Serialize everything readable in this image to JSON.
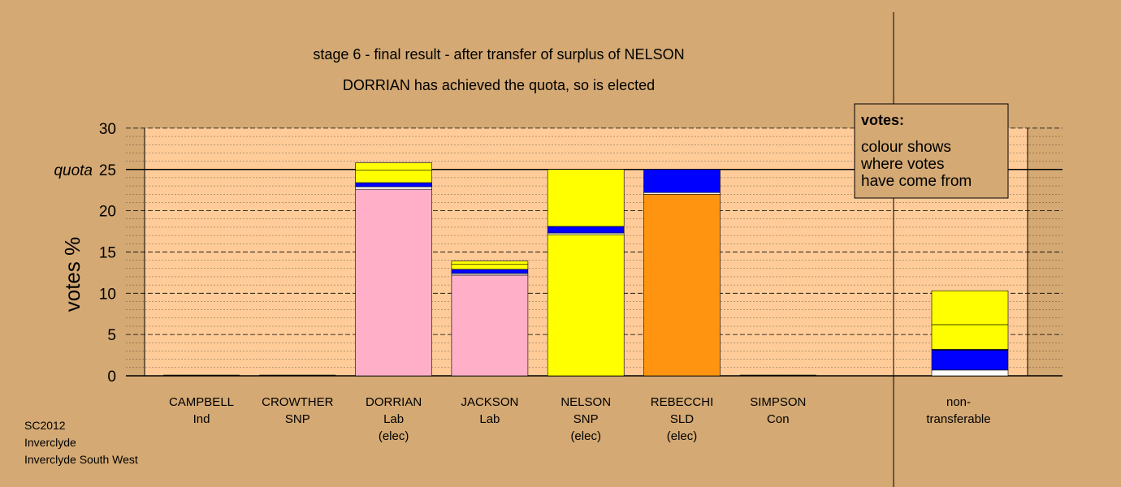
{
  "chart_data": {
    "type": "bar",
    "stacked": true,
    "title": "stage 6 - final result - after transfer of surplus of NELSON",
    "subtitle": "DORRIAN has achieved the quota, so is elected",
    "ylabel": "votes %",
    "ylim": [
      0,
      30
    ],
    "yticks": [
      0,
      5,
      10,
      15,
      20,
      25,
      30
    ],
    "quota": {
      "label": "quota",
      "value": 25
    },
    "grid": true,
    "legend": {
      "position": "top-right",
      "heading": "votes:",
      "lines": [
        "colour shows",
        "where votes",
        "have come from"
      ]
    },
    "candidates": [
      {
        "name": "CAMPBELL",
        "party": "Ind",
        "status": "",
        "segments": []
      },
      {
        "name": "CROWTHER",
        "party": "SNP",
        "status": "",
        "segments": []
      },
      {
        "name": "DORRIAN",
        "party": "Lab",
        "status": "(elec)",
        "segments": [
          {
            "value": 22.6,
            "color": "#ffb0c8"
          },
          {
            "value": 0.3,
            "color": "#ffffff"
          },
          {
            "value": 0.5,
            "color": "#0000ff"
          },
          {
            "value": 1.5,
            "color": "#ffff00"
          },
          {
            "value": 0.9,
            "color": "#ffff00"
          }
        ]
      },
      {
        "name": "JACKSON",
        "party": "Lab",
        "status": "",
        "segments": [
          {
            "value": 12.2,
            "color": "#ffb0c8"
          },
          {
            "value": 0.2,
            "color": "#ffffff"
          },
          {
            "value": 0.5,
            "color": "#0000ff"
          },
          {
            "value": 0.6,
            "color": "#ffff00"
          },
          {
            "value": 0.4,
            "color": "#ffff00"
          }
        ]
      },
      {
        "name": "NELSON",
        "party": "SNP",
        "status": "(elec)",
        "segments": [
          {
            "value": 17.1,
            "color": "#ffff00"
          },
          {
            "value": 0.2,
            "color": "#ffffff"
          },
          {
            "value": 0.8,
            "color": "#0000ff"
          },
          {
            "value": 6.9,
            "color": "#ffff00"
          }
        ]
      },
      {
        "name": "REBECCHI",
        "party": "SLD",
        "status": "(elec)",
        "segments": [
          {
            "value": 22.0,
            "color": "#ff9410"
          },
          {
            "value": 0.2,
            "color": "#ffffff"
          },
          {
            "value": 2.8,
            "color": "#0000ff"
          }
        ]
      },
      {
        "name": "SIMPSON",
        "party": "Con",
        "status": "",
        "segments": []
      }
    ],
    "non_transferable": {
      "label_lines": [
        "non-",
        "transferable"
      ],
      "segments": [
        {
          "value": 0.7,
          "color": "#ffffff"
        },
        {
          "value": 2.4,
          "color": "#0000ff"
        },
        {
          "value": 0.1,
          "color": "#0000ff"
        },
        {
          "value": 3.0,
          "color": "#ffff00"
        },
        {
          "value": 4.1,
          "color": "#ffff00"
        }
      ]
    }
  },
  "footer": [
    "SC2012",
    "Inverclyde",
    "Inverclyde South West"
  ],
  "colors": {
    "background": "#d4a973",
    "plot_area": "#ffcc99",
    "legend_box": "#d4a973"
  }
}
